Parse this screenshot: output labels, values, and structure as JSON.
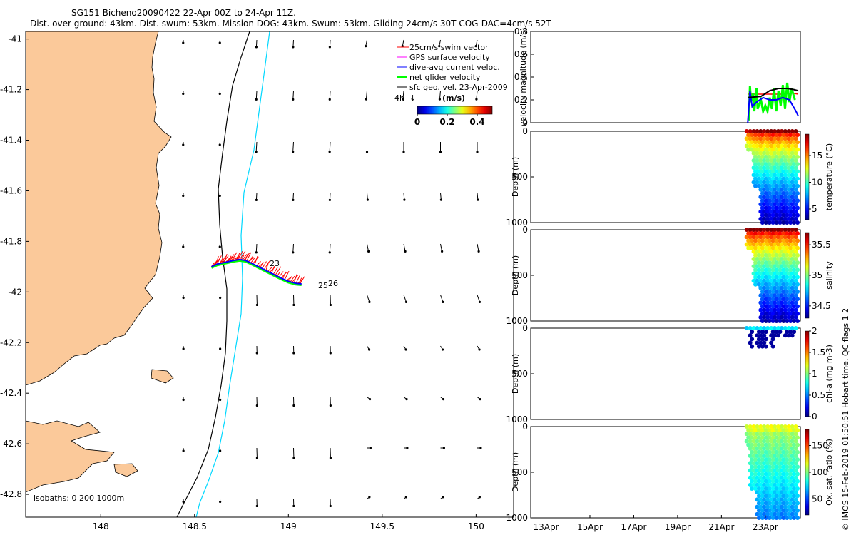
{
  "title_line1": "SG151 Bicheno20090422 22-Apr 00Z to 24-Apr 11Z.",
  "title_line2": "Dist. over ground: 43km. Dist. swum: 53km. Mission DOG: 43km. Swum: 53km. Gliding 24cm/s 30T COG-DAC=4cm/s 52T",
  "side_label": "© IMOS 15-Feb-2019 01:50:51 Hobart time. QC flags 1  2",
  "colors": {
    "land": "#fbc99a",
    "isobath_200": "#000000",
    "isobath_1000": "#00d8ff",
    "swim": "#ff0000",
    "gps": "#ff00ff",
    "dac": "#0000ff",
    "net": "#00ff00",
    "geo": "#000000"
  },
  "chart_data": [
    {
      "type": "map",
      "name": "track-map",
      "x_ticks": [
        "148",
        "148.5",
        "149",
        "149.5",
        "150"
      ],
      "y_ticks": [
        "-41",
        "-41.2",
        "-41.4",
        "-41.6",
        "-41.8",
        "-42",
        "-42.2",
        "-42.4",
        "-42.6",
        "-42.8"
      ],
      "xlim": [
        147.6,
        150.2
      ],
      "ylim": [
        -42.89,
        -40.97
      ],
      "legend": [
        {
          "label": "25cm/s swim vector",
          "key": "swim"
        },
        {
          "label": "GPS surface velocity",
          "key": "gps"
        },
        {
          "label": "dive-avg current veloc.",
          "key": "dac"
        },
        {
          "label": "net glider velocity",
          "key": "net"
        },
        {
          "label": "sfc geo. vel. 23-Apr-2009",
          "key": "geo"
        }
      ],
      "legend_placement": "top-right",
      "scale_label": "4h",
      "colorbar": {
        "title": "(m/s)",
        "ticks": [
          "0",
          "0.2",
          "0.4"
        ],
        "range": [
          0,
          0.5
        ]
      },
      "isobath_label": "isobaths: 0   200   1000m",
      "track_labels": [
        "23",
        "25",
        "26"
      ],
      "track": {
        "lon": [
          148.59,
          148.62,
          148.65,
          148.68,
          148.71,
          148.74,
          148.77,
          148.8,
          148.84,
          148.88,
          148.92,
          148.96,
          149.0,
          149.04,
          149.07
        ],
        "lat": [
          -41.9,
          -41.89,
          -41.885,
          -41.88,
          -41.875,
          -41.872,
          -41.875,
          -41.885,
          -41.9,
          -41.915,
          -41.93,
          -41.945,
          -41.958,
          -41.966,
          -41.968
        ]
      }
    },
    {
      "type": "line",
      "name": "velocity-magnitude",
      "ylabel": "velocity magnitude (m/s)",
      "y_ticks": [
        "0",
        "0.2",
        "0.4",
        "0.6",
        "0.8"
      ],
      "ylim": [
        0,
        0.8
      ],
      "series": [
        {
          "name": "swim",
          "key": "swim",
          "x": [
            22.2,
            22.6,
            23.0,
            23.4,
            23.8,
            24.2,
            24.5
          ],
          "y": [
            0.25,
            0.25,
            0.25,
            0.25,
            0.25,
            0.26,
            0.25
          ]
        },
        {
          "name": "net",
          "key": "net",
          "x": [
            22.25,
            22.3,
            22.35,
            22.45,
            22.5,
            22.6,
            22.65,
            22.8,
            22.9,
            23.0,
            23.1,
            23.2,
            23.3,
            23.4,
            23.5,
            23.6,
            23.7,
            23.8,
            23.9,
            24.0,
            24.1,
            24.2,
            24.35
          ],
          "y": [
            0.02,
            0.32,
            0.18,
            0.26,
            0.1,
            0.3,
            0.12,
            0.2,
            0.1,
            0.15,
            0.1,
            0.22,
            0.12,
            0.3,
            0.1,
            0.28,
            0.15,
            0.33,
            0.12,
            0.35,
            0.18,
            0.3,
            0.2
          ]
        },
        {
          "name": "dac",
          "key": "dac",
          "x": [
            22.2,
            22.3,
            22.4,
            22.6,
            22.9,
            23.2,
            23.5,
            23.8,
            24.1,
            24.4,
            24.5
          ],
          "y": [
            0.0,
            0.28,
            0.14,
            0.18,
            0.22,
            0.2,
            0.2,
            0.22,
            0.2,
            0.1,
            0.06
          ]
        },
        {
          "name": "geo",
          "key": "geo",
          "x": [
            22.2,
            22.8,
            23.2,
            23.6,
            24.0,
            24.3,
            24.5
          ],
          "y": [
            0.22,
            0.23,
            0.28,
            0.3,
            0.3,
            0.29,
            0.28
          ]
        }
      ]
    },
    {
      "type": "scatter",
      "name": "temperature-section",
      "ylabel": "Depth (m)",
      "y_ticks": [
        "0",
        "500",
        "1000"
      ],
      "ylim": [
        0,
        1000
      ],
      "colorbar_label": "temperature (°C)",
      "colorbar_ticks": [
        "5",
        "10",
        "15"
      ],
      "crange": [
        3,
        19
      ]
    },
    {
      "type": "scatter",
      "name": "salinity-section",
      "ylabel": "Depth (m)",
      "y_ticks": [
        "0",
        "500",
        "1000"
      ],
      "ylim": [
        0,
        1000
      ],
      "colorbar_label": "salinity",
      "colorbar_ticks": [
        "34.5",
        "35",
        "35.5"
      ],
      "crange": [
        34.3,
        35.7
      ]
    },
    {
      "type": "scatter",
      "name": "chla-section",
      "ylabel": "Depth (m)",
      "y_ticks": [
        "0",
        "500",
        "1000"
      ],
      "ylim": [
        0,
        1000
      ],
      "colorbar_label": "chl-a (mg m-3)",
      "colorbar_ticks": [
        "0",
        "0.5",
        "1",
        "1.5",
        "2"
      ],
      "crange": [
        0,
        2
      ]
    },
    {
      "type": "scatter",
      "name": "oxygen-section",
      "ylabel": "Depth (m)",
      "y_ticks": [
        "0",
        "500",
        "1000"
      ],
      "ylim": [
        0,
        1000
      ],
      "colorbar_label": "Ox. sat. ratio (%)",
      "colorbar_ticks": [
        "50",
        "100",
        "150"
      ],
      "crange": [
        20,
        180
      ]
    }
  ],
  "time_axis": {
    "ticks": [
      "13Apr",
      "15Apr",
      "17Apr",
      "19Apr",
      "21Apr",
      "23Apr"
    ],
    "values": [
      13,
      15,
      17,
      19,
      21,
      23
    ],
    "range": [
      12.3,
      24.6
    ]
  }
}
